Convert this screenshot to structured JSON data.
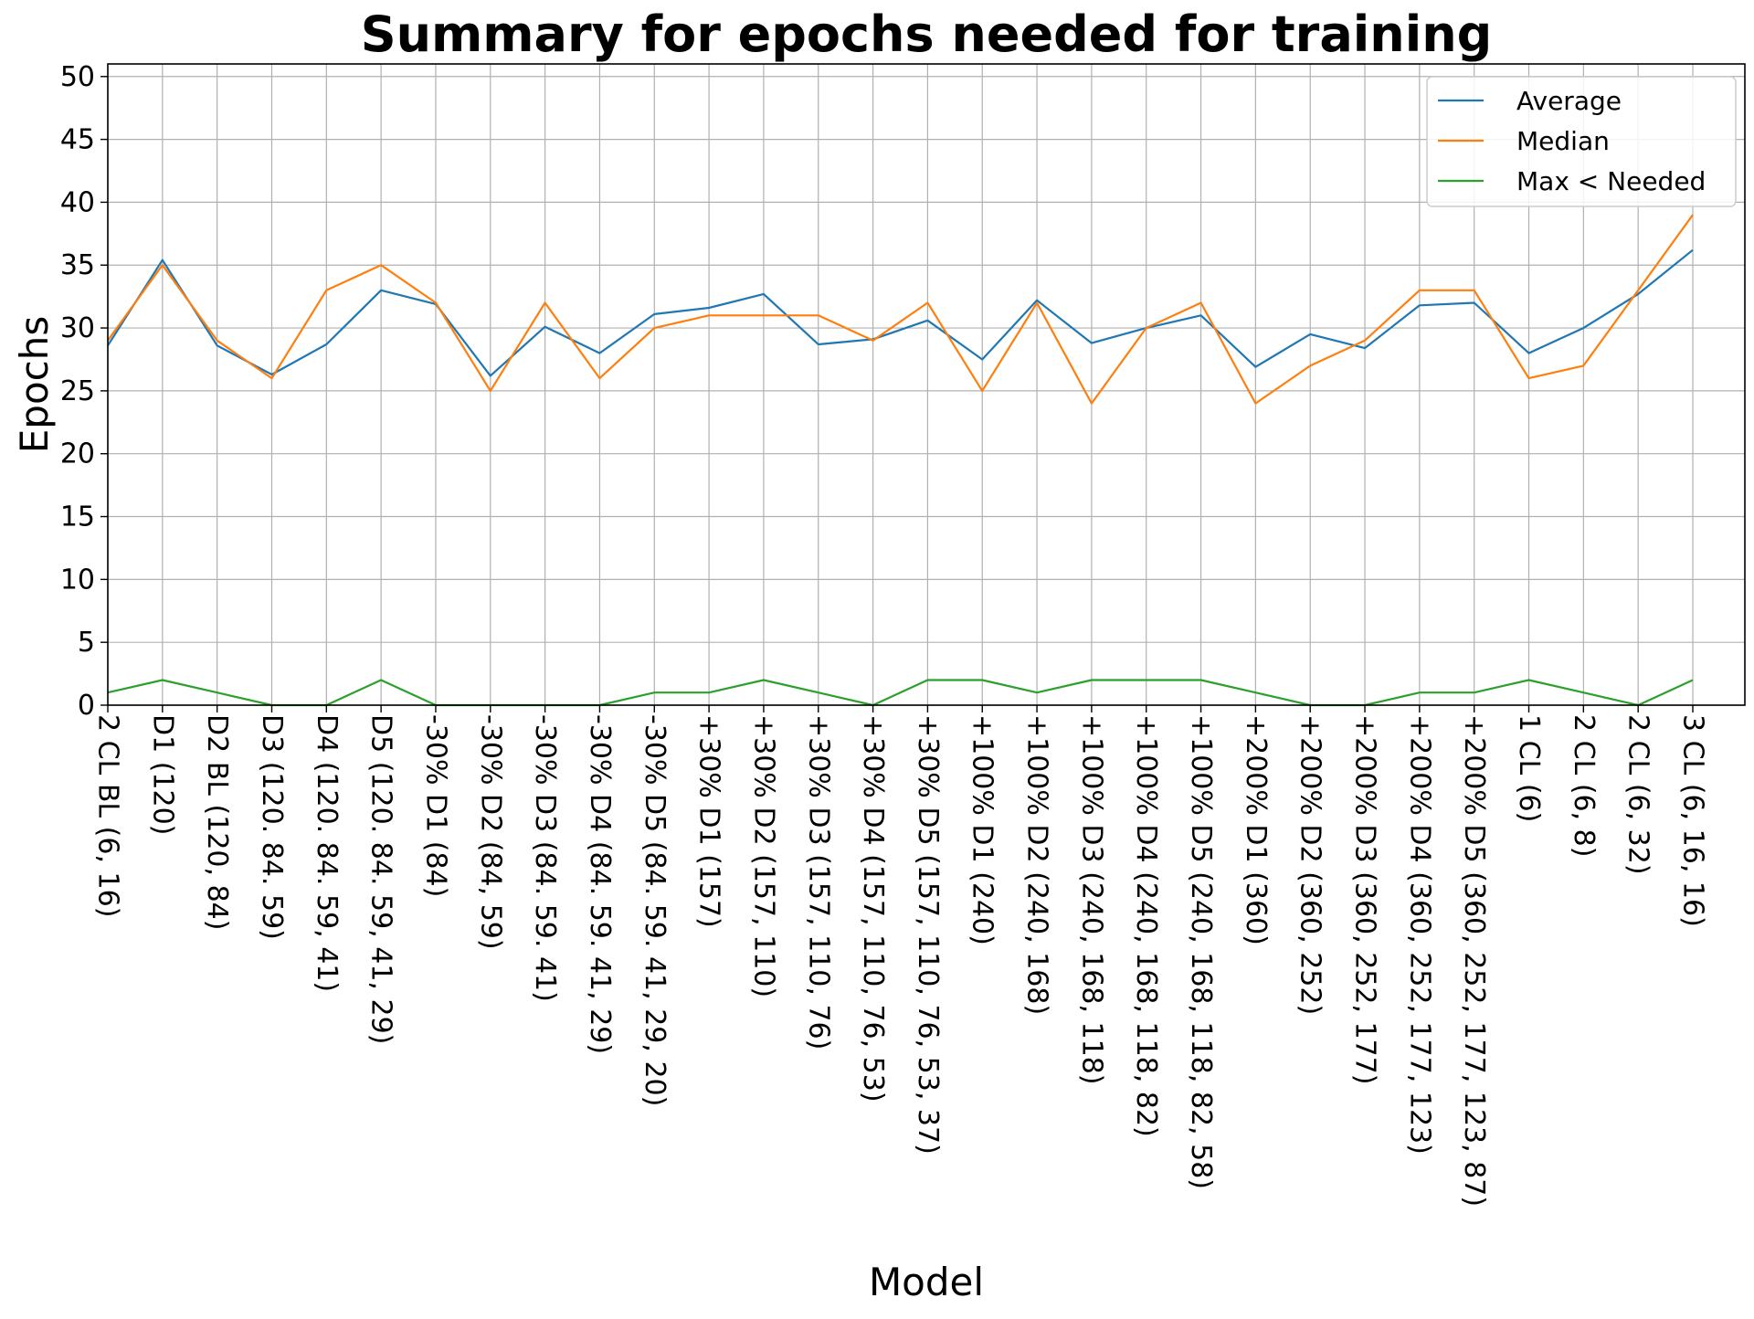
{
  "chart_data": {
    "type": "line",
    "title": "Summary for epochs needed for training",
    "xlabel": "Model",
    "ylabel": "Epochs",
    "ylim": [
      0,
      51
    ],
    "yticks": [
      0,
      5,
      10,
      15,
      20,
      25,
      30,
      35,
      40,
      45,
      50
    ],
    "grid": true,
    "legend_position": "top-right",
    "categories": [
      "2 CL BL (6, 16)",
      "D1 (120)",
      "D2 BL (120, 84)",
      "D3 (120. 84. 59)",
      "D4 (120. 84. 59, 41)",
      "D5 (120. 84. 59, 41, 29)",
      "-30% D1 (84)",
      "-30% D2 (84, 59)",
      "-30% D3 (84. 59. 41)",
      "-30% D4 (84. 59. 41, 29)",
      "-30% D5 (84. 59. 41, 29, 20)",
      "+30% D1 (157)",
      "+30% D2 (157, 110)",
      "+30% D3 (157, 110, 76)",
      "+30% D4 (157, 110, 76, 53)",
      "+30% D5 (157, 110, 76, 53, 37)",
      "+100% D1 (240)",
      "+100% D2 (240, 168)",
      "+100% D3 (240, 168, 118)",
      "+100% D4 (240, 168, 118, 82)",
      "+100% D5 (240, 168, 118, 82, 58)",
      "+200% D1 (360)",
      "+200% D2 (360, 252)",
      "+200% D3 (360, 252, 177)",
      "+200% D4 (360, 252, 177, 123)",
      "+200% D5 (360, 252, 177, 123, 87)",
      "1 CL (6)",
      "2 CL (6, 8)",
      "2 CL (6, 32)",
      "3 CL (6, 16, 16)"
    ],
    "series": [
      {
        "name": "Average",
        "color": "#1f77b4",
        "values": [
          28.6,
          35.4,
          28.6,
          26.3,
          28.7,
          33.0,
          31.9,
          26.2,
          30.1,
          28.0,
          31.1,
          31.6,
          32.7,
          28.7,
          29.1,
          30.6,
          27.5,
          32.2,
          28.8,
          30.0,
          31.0,
          26.9,
          29.5,
          28.4,
          31.8,
          32.0,
          28.0,
          30.0,
          32.7,
          36.2
        ]
      },
      {
        "name": "Median",
        "color": "#ff7f0e",
        "values": [
          29,
          35,
          29,
          26,
          33,
          35,
          32,
          25,
          32,
          26,
          30,
          31,
          31,
          31,
          29,
          32,
          25,
          32,
          24,
          30,
          32,
          24,
          27,
          29,
          33,
          33,
          26,
          27,
          33,
          39
        ]
      },
      {
        "name": "Max < Needed",
        "color": "#2ca02c",
        "values": [
          1,
          2,
          1,
          0,
          0,
          2,
          0,
          0,
          0,
          0,
          1,
          1,
          2,
          1,
          0,
          2,
          2,
          1,
          2,
          2,
          2,
          1,
          0,
          0,
          1,
          1,
          2,
          1,
          0,
          2
        ]
      }
    ]
  }
}
